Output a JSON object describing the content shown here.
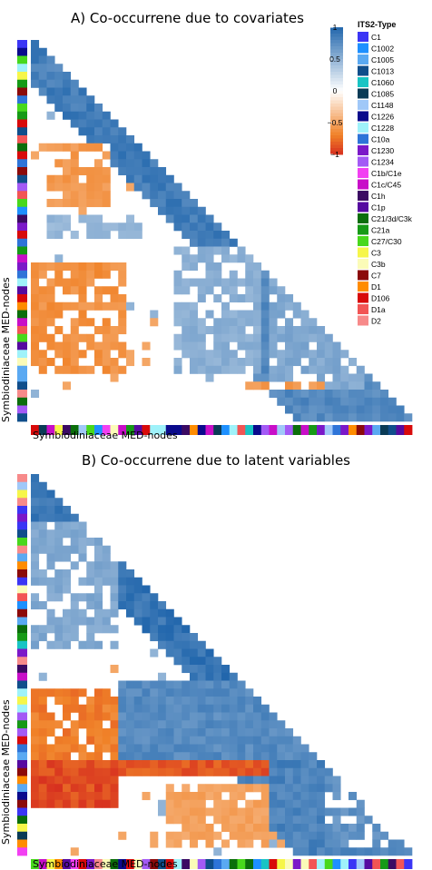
{
  "panels": [
    {
      "title": "A) Co-occurrene due to covariates",
      "xlabel": "Symbiodiniaceae MED-nodes",
      "ylabel": "Symbiodiniaceae MED-nodes"
    },
    {
      "title": "B) Co-occurrene due to latent variables",
      "xlabel": "Symbiodiniaceae MED-nodes",
      "ylabel": "Symbiodiniaceae MED-nodes"
    }
  ],
  "colorbar": {
    "ticks": [
      "1",
      "0.5",
      "0",
      "−0.5",
      "−1"
    ],
    "colors": {
      "pos": "#2166ac",
      "mid": "#ffffff",
      "neg": "#d7301f"
    }
  },
  "legend": {
    "title": "ITS2-Type",
    "items": [
      {
        "label": "C1",
        "color": "#3b35f5"
      },
      {
        "label": "C1002",
        "color": "#1e90ff"
      },
      {
        "label": "C1005",
        "color": "#5aa9f2"
      },
      {
        "label": "C1013",
        "color": "#104e8b"
      },
      {
        "label": "C1060",
        "color": "#19c4c4"
      },
      {
        "label": "C1085",
        "color": "#0a3b56"
      },
      {
        "label": "C1148",
        "color": "#a0c8f8"
      },
      {
        "label": "C1226",
        "color": "#0a0a8c"
      },
      {
        "label": "C1228",
        "color": "#9ff2fa"
      },
      {
        "label": "C10a",
        "color": "#2e74d8"
      },
      {
        "label": "C1230",
        "color": "#7b18c8"
      },
      {
        "label": "C1234",
        "color": "#a35af5"
      },
      {
        "label": "C1b/C1e",
        "color": "#f23ff2"
      },
      {
        "label": "C1c/C45",
        "color": "#c80ec8"
      },
      {
        "label": "C1h",
        "color": "#3b0a63"
      },
      {
        "label": "C1p",
        "color": "#560aa0"
      },
      {
        "label": "C21/3d/C3k",
        "color": "#0b6e0b"
      },
      {
        "label": "C21a",
        "color": "#169a16"
      },
      {
        "label": "C27/C30",
        "color": "#48d81c"
      },
      {
        "label": "C3",
        "color": "#f6f64a"
      },
      {
        "label": "C3b",
        "color": "#fbfbb8"
      },
      {
        "label": "C7",
        "color": "#8b0a0a"
      },
      {
        "label": "D1",
        "color": "#ff8c00"
      },
      {
        "label": "D106",
        "color": "#d80a0a"
      },
      {
        "label": "D1a",
        "color": "#f25555"
      },
      {
        "label": "D2",
        "color": "#f78a8a"
      }
    ]
  },
  "chart_data": [
    {
      "type": "heatmap",
      "title": "A) Co-occurrene due to covariates",
      "xlabel": "Symbiodiniaceae MED-nodes",
      "ylabel": "Symbiodiniaceae MED-nodes",
      "layout": "lower-triangle correlation matrix with ITS2-type annotation bars",
      "value_range": [
        -1,
        1
      ],
      "blocks": [
        {
          "rows_frac": [
            0.05,
            0.13
          ],
          "cols_frac": [
            0.02,
            0.11
          ],
          "value": 0.85
        },
        {
          "rows_frac": [
            0.27,
            0.44
          ],
          "cols_frac": [
            0.05,
            0.2
          ],
          "value": -0.6
        },
        {
          "rows_frac": [
            0.45,
            0.53
          ],
          "cols_frac": [
            0.05,
            0.3
          ],
          "value": 0.5
        },
        {
          "rows_frac": [
            0.58,
            0.87
          ],
          "cols_frac": [
            0.0,
            0.26
          ],
          "value": -0.65
        },
        {
          "rows_frac": [
            0.54,
            0.88
          ],
          "cols_frac": [
            0.38,
            0.6
          ],
          "value": 0.55
        },
        {
          "rows_frac": [
            0.62,
            0.92
          ],
          "cols_frac": [
            0.62,
            0.88
          ],
          "value": 0.6
        },
        {
          "rows_frac": [
            0.9,
            0.92
          ],
          "cols_frac": [
            0.55,
            0.78
          ],
          "value": -0.6
        }
      ],
      "diagonal_band_value": 0.9
    },
    {
      "type": "heatmap",
      "title": "B) Co-occurrene due to latent variables",
      "xlabel": "Symbiodiniaceae MED-nodes",
      "ylabel": "Symbiodiniaceae MED-nodes",
      "layout": "lower-triangle correlation matrix with ITS2-type annotation bars",
      "value_range": [
        -1,
        1
      ],
      "blocks": [
        {
          "rows_frac": [
            0.13,
            0.45
          ],
          "cols_frac": [
            0.0,
            0.22
          ],
          "value": 0.6
        },
        {
          "rows_frac": [
            0.56,
            0.88
          ],
          "cols_frac": [
            0.0,
            0.22
          ],
          "value": -0.75
        },
        {
          "rows_frac": [
            0.76,
            0.88
          ],
          "cols_frac": [
            0.0,
            0.22
          ],
          "value": -0.95
        },
        {
          "rows_frac": [
            0.76,
            0.79
          ],
          "cols_frac": [
            0.22,
            0.62
          ],
          "value": -0.9
        },
        {
          "rows_frac": [
            0.55,
            0.75
          ],
          "cols_frac": [
            0.22,
            0.8
          ],
          "value": 0.8
        },
        {
          "rows_frac": [
            0.82,
            0.98
          ],
          "cols_frac": [
            0.35,
            0.62
          ],
          "value": -0.55
        },
        {
          "rows_frac": [
            0.8,
            0.98
          ],
          "cols_frac": [
            0.78,
            0.98
          ],
          "value": 0.75
        }
      ],
      "diagonal_band_value": 0.95
    }
  ]
}
